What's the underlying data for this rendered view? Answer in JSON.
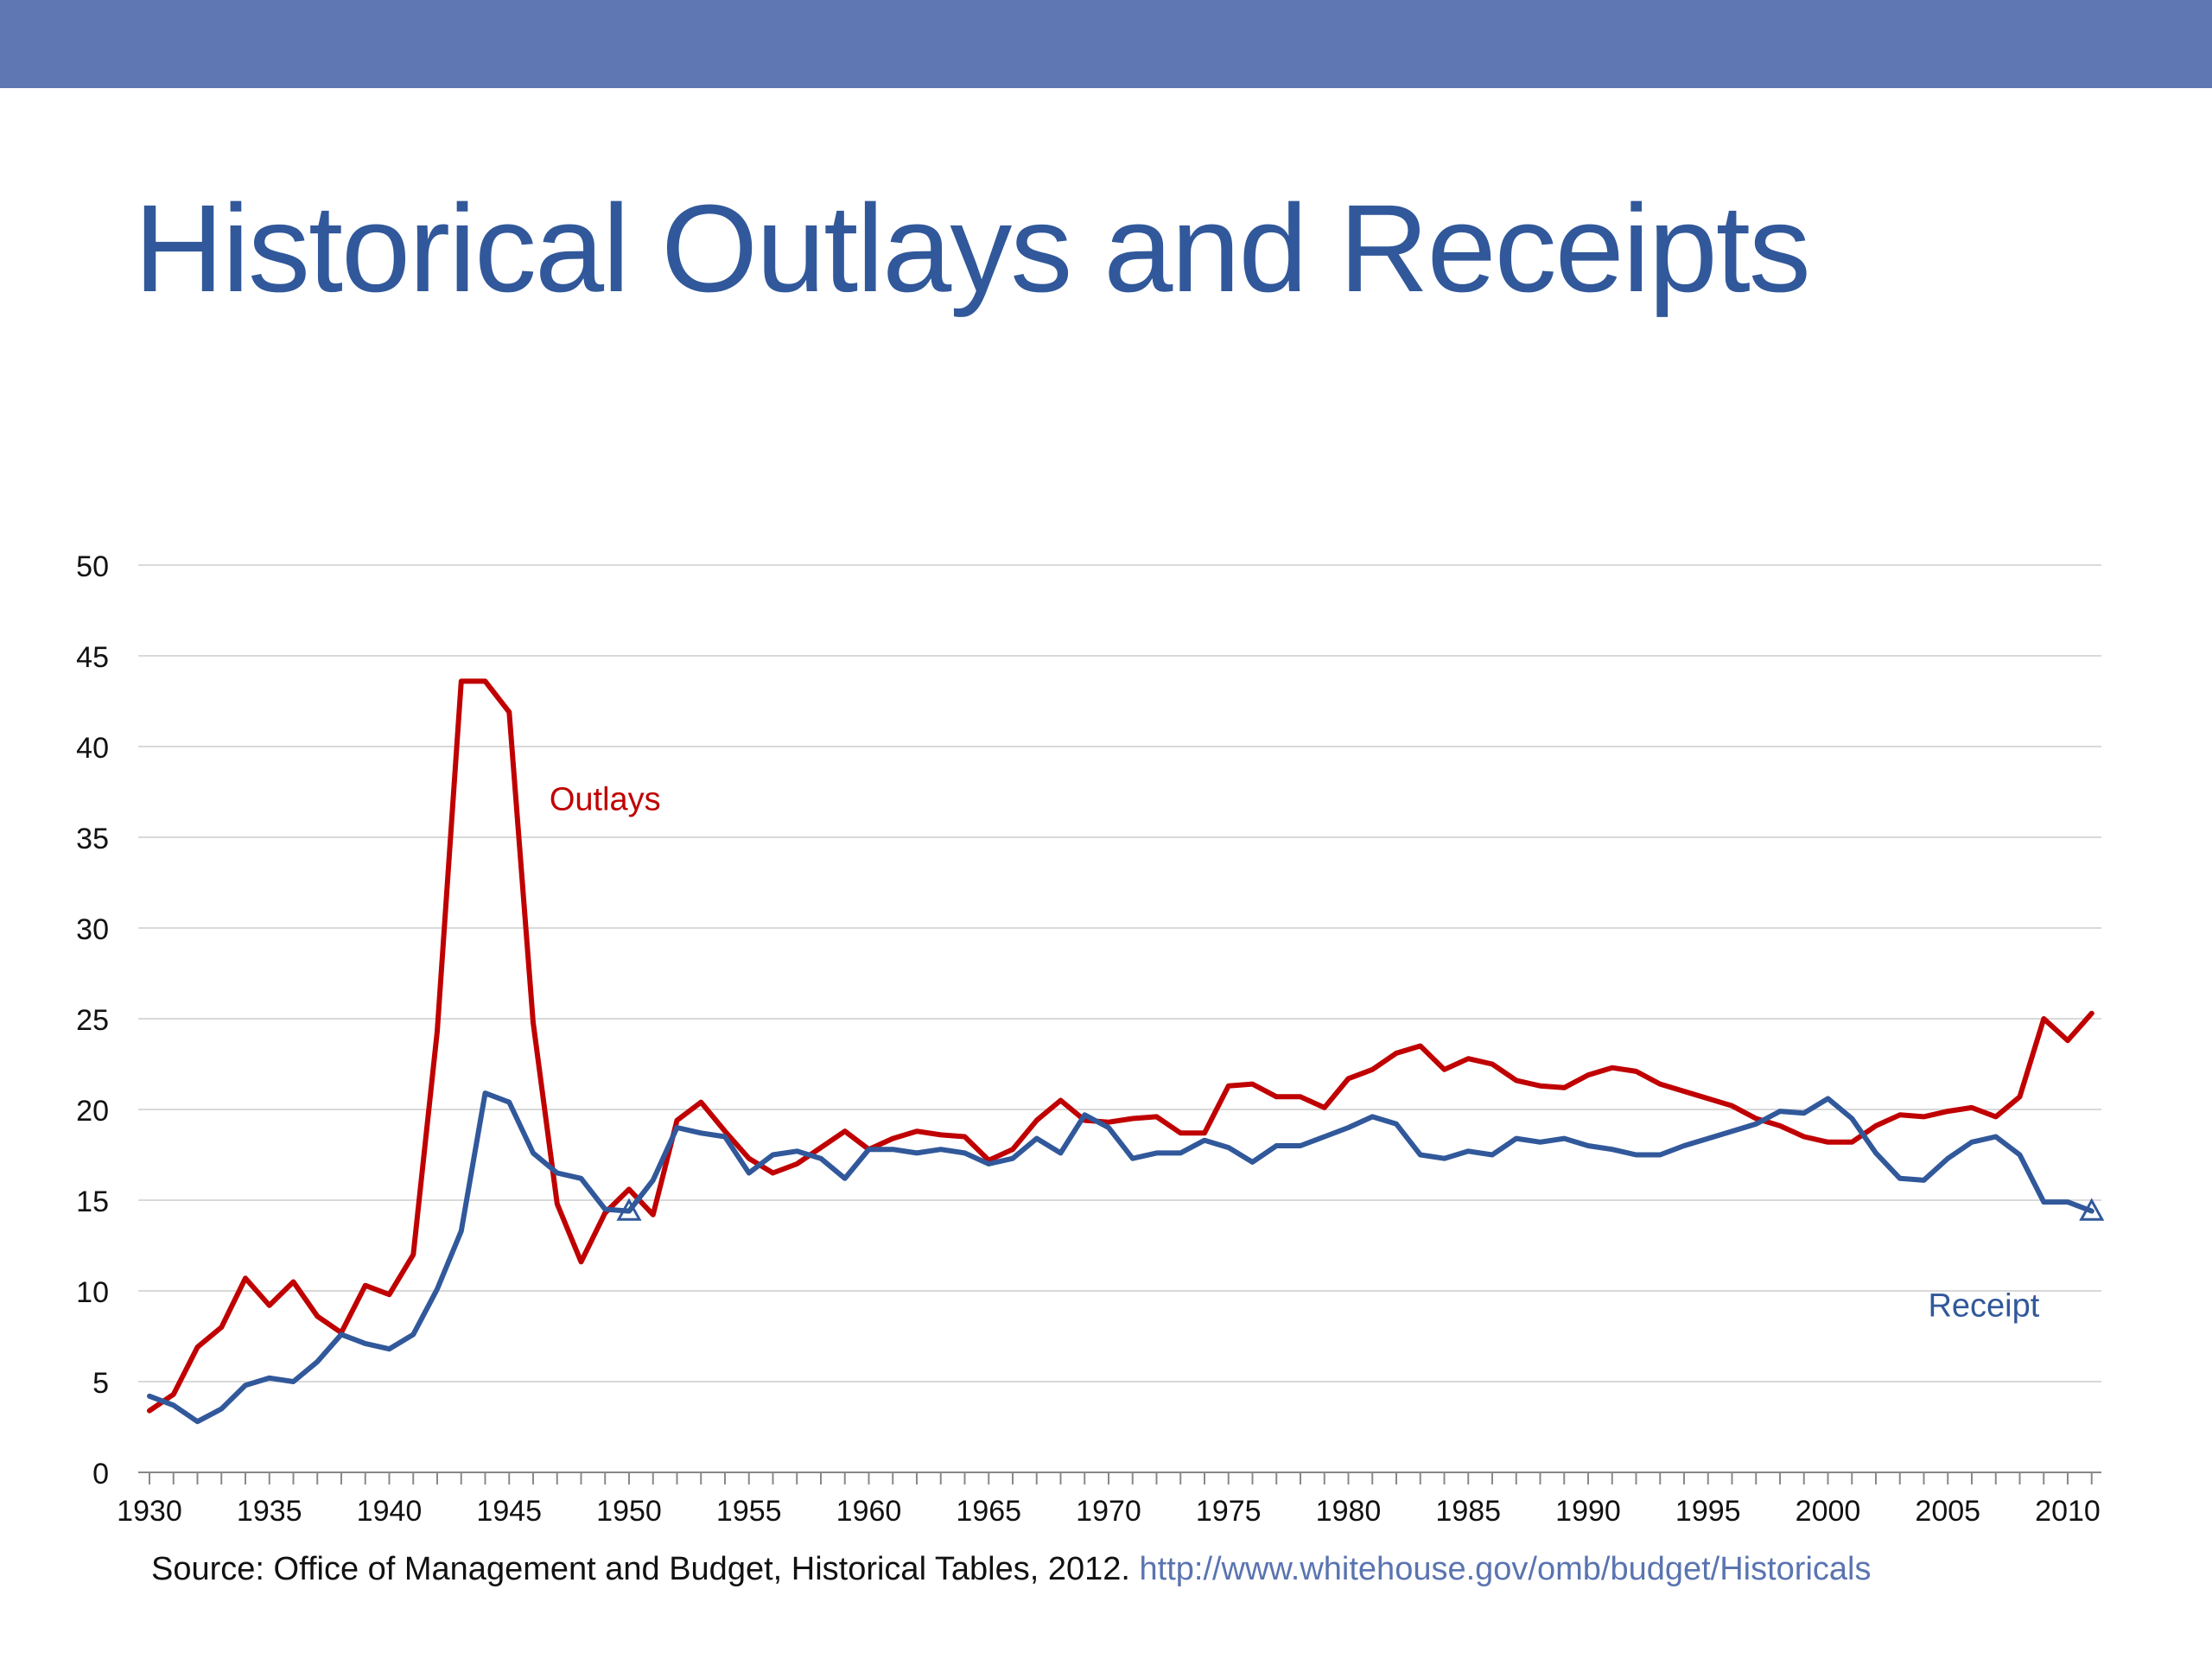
{
  "slide": {
    "title": "Historical Outlays and Receipts",
    "band_color": "#5f78b4",
    "title_color": "#31589a"
  },
  "source": {
    "prefix": "Source:  Office of Management and Budget, Historical Tables, 2012.",
    "link": "http://www.whitehouse.gov/omb/budget/Historicals"
  },
  "chart_data": {
    "type": "line",
    "title": "",
    "xlabel": "",
    "ylabel": "",
    "xlim": [
      1930,
      2011
    ],
    "ylim": [
      0,
      50
    ],
    "yticks": [
      0,
      5,
      10,
      15,
      20,
      25,
      30,
      35,
      40,
      45,
      50
    ],
    "xticks": [
      1930,
      1935,
      1940,
      1945,
      1950,
      1955,
      1960,
      1965,
      1970,
      1975,
      1980,
      1985,
      1990,
      1995,
      2000,
      2005,
      2010
    ],
    "grid": true,
    "x": [
      1930,
      1931,
      1932,
      1933,
      1934,
      1935,
      1936,
      1937,
      1938,
      1939,
      1940,
      1941,
      1942,
      1943,
      1944,
      1945,
      1946,
      1947,
      1948,
      1949,
      1950,
      1951,
      1952,
      1953,
      1954,
      1955,
      1956,
      1957,
      1958,
      1959,
      1960,
      1961,
      1962,
      1963,
      1964,
      1965,
      1966,
      1967,
      1968,
      1969,
      1970,
      1971,
      1972,
      1973,
      1974,
      1975,
      1976,
      1977,
      1978,
      1979,
      1980,
      1981,
      1982,
      1983,
      1984,
      1985,
      1986,
      1987,
      1988,
      1989,
      1990,
      1991,
      1992,
      1993,
      1994,
      1995,
      1996,
      1997,
      1998,
      1999,
      2000,
      2001,
      2002,
      2003,
      2004,
      2005,
      2006,
      2007,
      2008,
      2009,
      2010,
      2011
    ],
    "series": [
      {
        "name": "Outlays",
        "color": "#c00000",
        "values": [
          3.4,
          4.3,
          6.9,
          8.0,
          10.7,
          9.2,
          10.5,
          8.6,
          7.7,
          10.3,
          9.8,
          12.0,
          24.3,
          43.6,
          43.6,
          41.9,
          24.8,
          14.8,
          11.6,
          14.3,
          15.6,
          14.2,
          19.4,
          20.4,
          18.8,
          17.3,
          16.5,
          17.0,
          17.9,
          18.8,
          17.8,
          18.4,
          18.8,
          18.6,
          18.5,
          17.2,
          17.8,
          19.4,
          20.5,
          19.4,
          19.3,
          19.5,
          19.6,
          18.7,
          18.7,
          21.3,
          21.4,
          20.7,
          20.7,
          20.1,
          21.7,
          22.2,
          23.1,
          23.5,
          22.2,
          22.8,
          22.5,
          21.6,
          21.3,
          21.2,
          21.9,
          22.3,
          22.1,
          21.4,
          21.0,
          20.6,
          20.2,
          19.5,
          19.1,
          18.5,
          18.2,
          18.2,
          19.1,
          19.7,
          19.6,
          19.9,
          20.1,
          19.6,
          20.7,
          25.0,
          23.8,
          25.3
        ]
      },
      {
        "name": "Receipt",
        "color": "#31589a",
        "values": [
          4.2,
          3.7,
          2.8,
          3.5,
          4.8,
          5.2,
          5.0,
          6.1,
          7.6,
          7.1,
          6.8,
          7.6,
          10.1,
          13.3,
          20.9,
          20.4,
          17.6,
          16.5,
          16.2,
          14.5,
          14.4,
          16.1,
          19.0,
          18.7,
          18.5,
          16.5,
          17.5,
          17.7,
          17.3,
          16.2,
          17.8,
          17.8,
          17.6,
          17.8,
          17.6,
          17.0,
          17.3,
          18.4,
          17.6,
          19.7,
          19.0,
          17.3,
          17.6,
          17.6,
          18.3,
          17.9,
          17.1,
          18.0,
          18.0,
          18.5,
          19.0,
          19.6,
          19.2,
          17.5,
          17.3,
          17.7,
          17.5,
          18.4,
          18.2,
          18.4,
          18.0,
          17.8,
          17.5,
          17.5,
          18.0,
          18.4,
          18.8,
          19.2,
          19.9,
          19.8,
          20.6,
          19.5,
          17.6,
          16.2,
          16.1,
          17.3,
          18.2,
          18.5,
          17.5,
          14.9,
          14.9,
          14.4
        ]
      }
    ],
    "annotations": [
      {
        "text": "Outlays",
        "x": 1949,
        "y": 36.5,
        "color": "#c00000"
      },
      {
        "text": "Receipt",
        "x": 2006.5,
        "y": 8.6,
        "color": "#31589a"
      }
    ],
    "markers": [
      {
        "series": "Receipt",
        "x": 1950,
        "shape": "triangle"
      },
      {
        "series": "Receipt",
        "x": 2011,
        "shape": "triangle"
      }
    ]
  }
}
